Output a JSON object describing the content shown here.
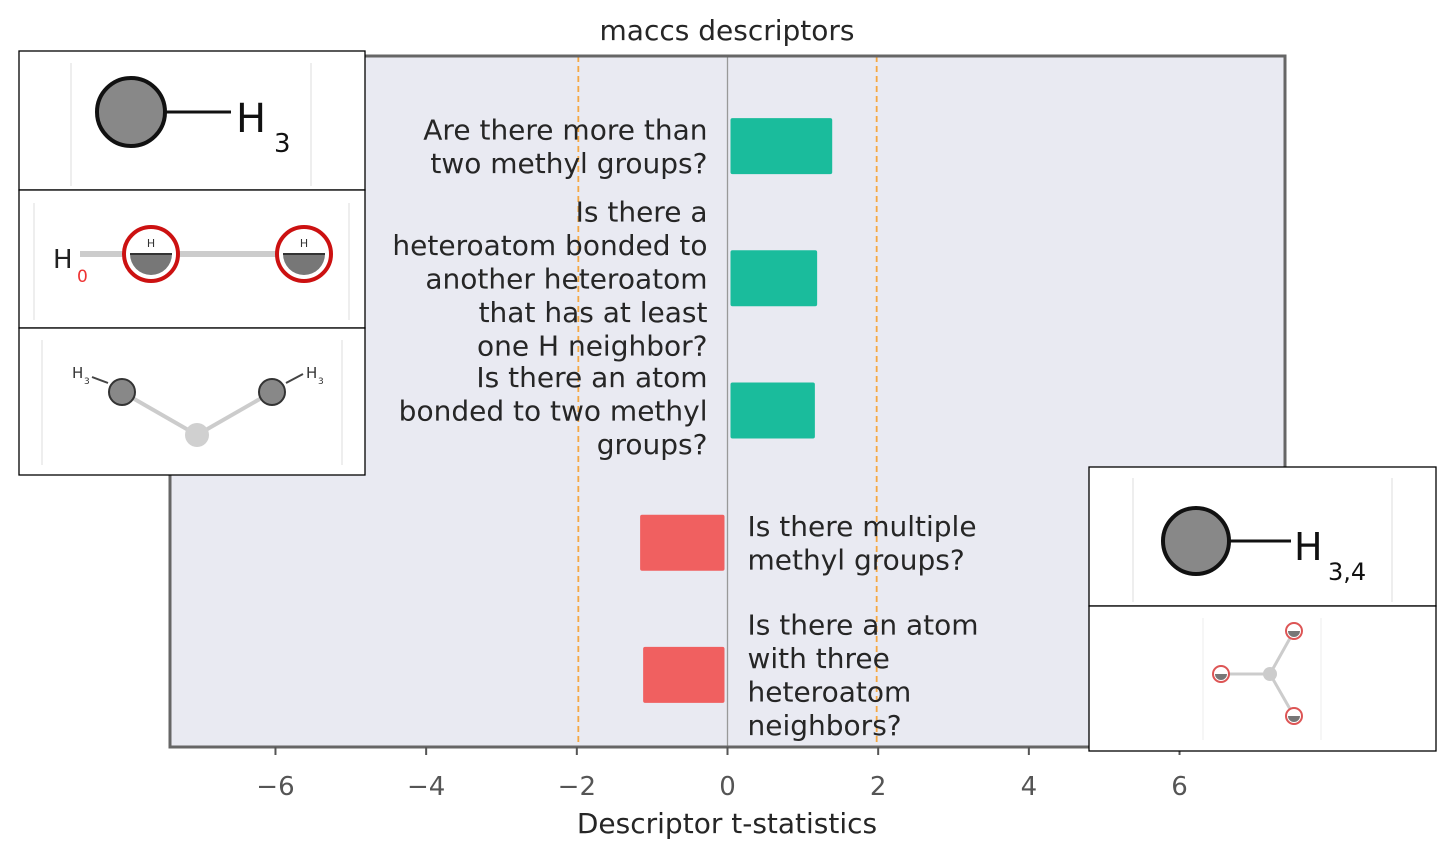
{
  "chart_data": {
    "type": "bar",
    "orientation": "horizontal",
    "title": "maccs descriptors",
    "xlabel": "Descriptor t-statistics",
    "ylabel": "",
    "xlim": [
      -7.4,
      7.4
    ],
    "xticks": [
      -6,
      -4,
      -2,
      0,
      2,
      4,
      6
    ],
    "tick_labels": [
      "−6",
      "−4",
      "−2",
      "0",
      "2",
      "4",
      "6"
    ],
    "significance_lines": [
      -1.98,
      1.98
    ],
    "categories": [
      [
        "Are there more than",
        "two methyl groups?"
      ],
      [
        "Is there a",
        "heteroatom bonded to",
        "another heteroatom",
        "that has at least",
        "one H neighbor?"
      ],
      [
        "Is there an atom",
        "bonded to two methyl",
        "groups?"
      ],
      [
        "Is there multiple",
        "methyl groups?"
      ],
      [
        "Is there an atom",
        "with three",
        "heteroatom",
        "neighbors?"
      ]
    ],
    "values": [
      1.35,
      1.15,
      1.12,
      -1.12,
      -1.08
    ],
    "grid": false,
    "colors": {
      "positive": "#1abc9c",
      "negative": "#f06060",
      "plot_bg": "#e9eaf2",
      "significance": "#f5a742",
      "zero_line": "#999999",
      "frame": "#666666"
    },
    "insets": {
      "left": [
        {
          "label": "H",
          "subscript": "3"
        },
        {
          "label": "H",
          "subscript": "0",
          "atom": "H"
        },
        {
          "label": "H",
          "subscript": "3"
        }
      ],
      "right": [
        {
          "label": "H",
          "subscript": "3,4"
        },
        {}
      ]
    }
  }
}
